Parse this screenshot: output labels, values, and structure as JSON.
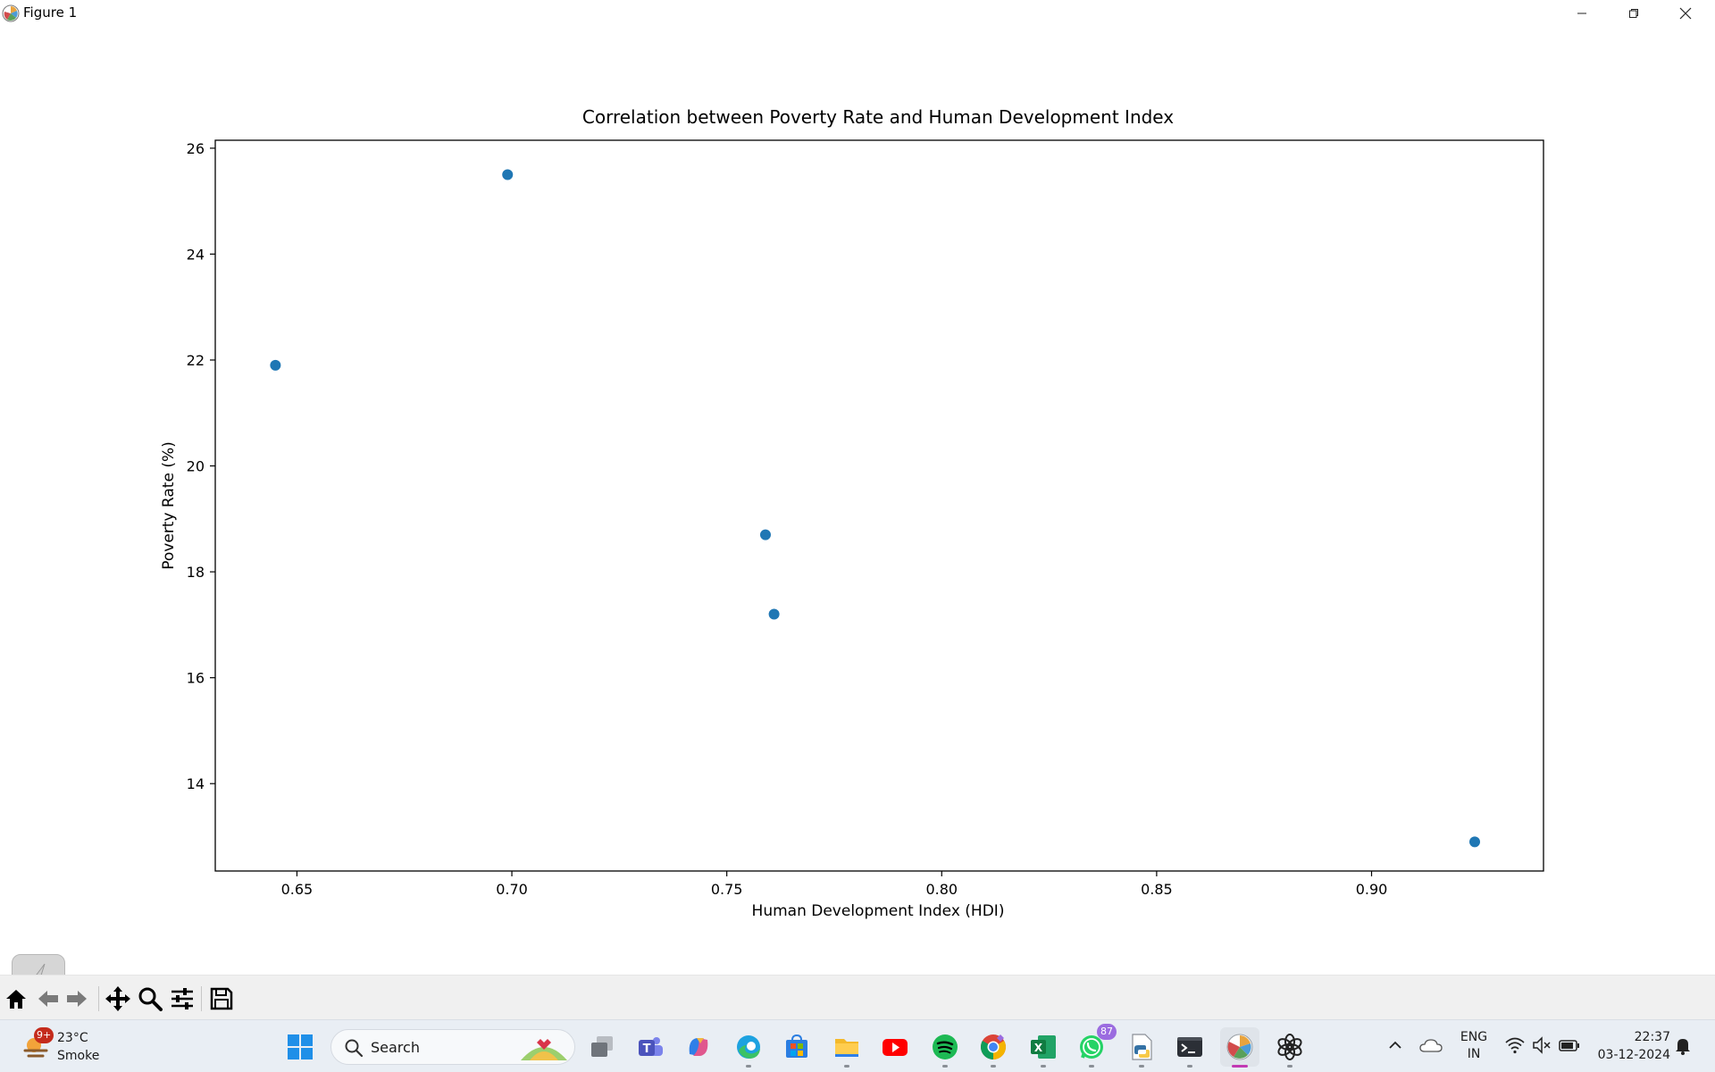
{
  "window": {
    "title": "Figure 1",
    "icon": "matplotlib-logo-icon",
    "controls": [
      "minimize-icon",
      "restore-icon",
      "close-icon"
    ]
  },
  "chart_data": {
    "type": "scatter",
    "title": "Correlation between Poverty Rate and Human Development Index",
    "xlabel": "Human Development Index (HDI)",
    "ylabel": "Poverty Rate (%)",
    "xlim": [
      0.631,
      0.94
    ],
    "ylim": [
      12.35,
      26.15
    ],
    "xticks": [
      0.65,
      0.7,
      0.75,
      0.8,
      0.85,
      0.9
    ],
    "xtick_labels": [
      "0.65",
      "0.70",
      "0.75",
      "0.80",
      "0.85",
      "0.90"
    ],
    "yticks": [
      14,
      16,
      18,
      20,
      22,
      24,
      26
    ],
    "ytick_labels": [
      "14",
      "16",
      "18",
      "20",
      "22",
      "24",
      "26"
    ],
    "grid": false,
    "marker_color": "#1f77b4",
    "points": [
      {
        "x": 0.645,
        "y": 21.9
      },
      {
        "x": 0.699,
        "y": 25.5
      },
      {
        "x": 0.759,
        "y": 18.7
      },
      {
        "x": 0.761,
        "y": 17.2
      },
      {
        "x": 0.924,
        "y": 12.9
      }
    ]
  },
  "toolbar": {
    "buttons": [
      "home-icon",
      "back-arrow-icon",
      "forward-arrow-icon",
      "pan-icon",
      "zoom-magnifier-icon",
      "configure-subplots-icon",
      "save-icon"
    ]
  },
  "taskbar": {
    "weather": {
      "temp": "23°C",
      "condition": "Smoke",
      "badge": "9+"
    },
    "search_label": "Search",
    "apps": [
      {
        "name": "start",
        "icon": "windows-logo-icon"
      },
      {
        "name": "task-view",
        "icon": "task-view-icon"
      },
      {
        "name": "teams",
        "icon": "teams-icon"
      },
      {
        "name": "copilot",
        "icon": "copilot-icon"
      },
      {
        "name": "edge",
        "icon": "edge-icon"
      },
      {
        "name": "store",
        "icon": "store-icon"
      },
      {
        "name": "file-explorer",
        "icon": "folder-icon"
      },
      {
        "name": "youtube",
        "icon": "youtube-icon"
      },
      {
        "name": "spotify",
        "icon": "spotify-icon"
      },
      {
        "name": "chrome",
        "icon": "chrome-icon"
      },
      {
        "name": "excel",
        "icon": "excel-icon"
      },
      {
        "name": "whatsapp",
        "icon": "whatsapp-icon",
        "badge": "87"
      },
      {
        "name": "python-file",
        "icon": "python-file-icon"
      },
      {
        "name": "terminal",
        "icon": "terminal-icon"
      },
      {
        "name": "matplotlib",
        "icon": "matplotlib-logo-icon"
      },
      {
        "name": "chatgpt",
        "icon": "chatgpt-icon"
      }
    ],
    "tray": {
      "lang_line1": "ENG",
      "lang_line2": "IN",
      "time": "22:37",
      "date": "03-12-2024"
    }
  }
}
